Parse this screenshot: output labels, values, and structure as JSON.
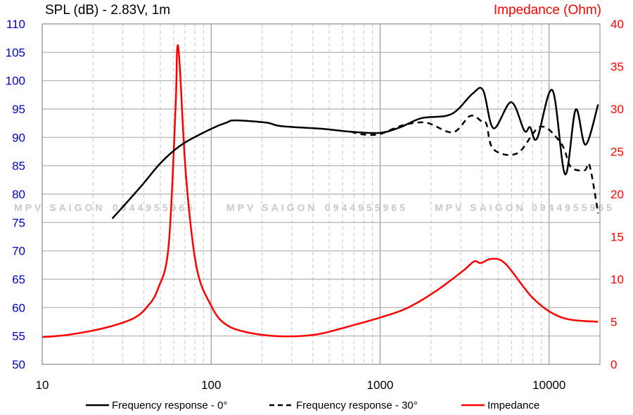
{
  "chart_data": {
    "type": "line",
    "title_left": "SPL (dB) - 2.83V, 1m",
    "title_right": "Impedance (Ohm)",
    "x_scale": "log",
    "xlim": [
      10,
      20000
    ],
    "x_ticks": [
      10,
      100,
      1000,
      10000
    ],
    "x_tick_labels": [
      "10",
      "100",
      "1000",
      "10000"
    ],
    "ylim_left": [
      50,
      110
    ],
    "y_left_ticks": [
      "50",
      "55",
      "60",
      "65",
      "70",
      "75",
      "80",
      "85",
      "90",
      "95",
      "100",
      "105",
      "110"
    ],
    "ylim_right": [
      0,
      40
    ],
    "y_right_ticks": [
      "0",
      "5",
      "10",
      "15",
      "20",
      "25",
      "30",
      "35",
      "40"
    ],
    "grid": true,
    "legend_position": "bottom",
    "watermark": [
      "MPV SAIGON",
      "0944955965"
    ],
    "colors": {
      "left_axis": "#0000cc",
      "right_axis": "#ff0000",
      "spl": "#000000",
      "impedance": "#ff0000",
      "grid": "#b0b0b0"
    },
    "series": [
      {
        "name": "Frequency response - 0°",
        "axis": "left",
        "style": "solid",
        "x": [
          26,
          38,
          51,
          67.6,
          100,
          123,
          139,
          213,
          258,
          459,
          672,
          1000,
          1320,
          1760,
          2640,
          3520,
          4070,
          4690,
          5960,
          7140,
          7710,
          8490,
          10470,
          12440,
          14370,
          16430,
          19500
        ],
        "y": [
          75.7,
          81.2,
          85.7,
          88.8,
          91.5,
          92.6,
          93.0,
          92.6,
          92.0,
          91.5,
          91.0,
          90.8,
          91.8,
          93.4,
          94.1,
          97.7,
          98.3,
          91.6,
          96.2,
          91.2,
          91.8,
          89.8,
          98.3,
          83.5,
          94.9,
          88.7,
          95.8
        ]
      },
      {
        "name": "Frequency response - 30°",
        "axis": "left",
        "style": "dashed",
        "x": [
          672,
          800,
          1000,
          1352,
          1873,
          2690,
          3420,
          4030,
          4265,
          4690,
          6500,
          8910,
          11860,
          13430,
          16220,
          17380,
          19500
        ],
        "y": [
          91.0,
          90.5,
          90.6,
          92.1,
          92.6,
          90.9,
          93.8,
          92.7,
          92.3,
          87.9,
          87.2,
          91.9,
          88.8,
          84.8,
          84.2,
          85.0,
          76.6
        ]
      },
      {
        "name": "Impedance",
        "axis": "right",
        "style": "solid",
        "x": [
          10,
          14.6,
          23.6,
          34.6,
          42,
          48.5,
          56,
          61.6,
          62.9,
          65,
          71,
          82,
          100,
          120,
          160,
          258,
          416,
          610,
          1000,
          1440,
          2100,
          3100,
          3600,
          3950,
          4560,
          5530,
          8100,
          11900,
          19500
        ],
        "y": [
          3.2,
          3.5,
          4.3,
          5.4,
          6.8,
          8.9,
          13.9,
          30.4,
          37.0,
          35.4,
          22.1,
          11.4,
          6.9,
          4.8,
          3.8,
          3.3,
          3.5,
          4.3,
          5.5,
          6.6,
          8.5,
          11.0,
          12.1,
          11.9,
          12.4,
          11.8,
          7.7,
          5.5,
          5.0
        ]
      }
    ]
  }
}
